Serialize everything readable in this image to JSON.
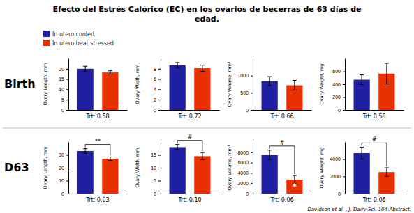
{
  "title": "Efecto del Estrés Calórico (EC) en los ovarios de becerras de 63 días de\nedad.",
  "row_labels": [
    "Birth",
    "D63"
  ],
  "series": [
    {
      "name": "In utero cooled",
      "color": "#1f1fa3"
    },
    {
      "name": "In utero heat stressed",
      "color": "#e83000"
    }
  ],
  "citation": "Davidson et al. ,  J. Dairy Sci. 104:Abstract.",
  "chart_data": [
    {
      "type": "bar",
      "ylabel": "Ovary Length, mm",
      "xlabel": "Trt: 0.58",
      "categories": [
        null,
        null
      ],
      "values": [
        20.0,
        18.2
      ],
      "errors": [
        1.2,
        0.8
      ],
      "colors": [
        "#1f1fa3",
        "#e83000"
      ],
      "ylim": [
        0,
        25
      ],
      "yticks": [
        0,
        5,
        10,
        15,
        20
      ]
    },
    {
      "type": "bar",
      "ylabel": "Ovary Width, mm",
      "xlabel": "Trt: 0.72",
      "categories": [
        null,
        null
      ],
      "values": [
        8.7,
        8.1
      ],
      "errors": [
        0.5,
        0.6
      ],
      "colors": [
        "#1f1fa3",
        "#e83000"
      ],
      "ylim": [
        0,
        10
      ],
      "yticks": [
        0,
        2,
        4,
        6,
        8
      ]
    },
    {
      "type": "bar",
      "ylabel": "Ovary Volume, mm³",
      "xlabel": "Trt: 0.66",
      "categories": [
        null,
        null
      ],
      "values": [
        840,
        720
      ],
      "errors": [
        130,
        140
      ],
      "colors": [
        "#1f1fa3",
        "#e83000"
      ],
      "ylim": [
        0,
        1500
      ],
      "yticks": [
        0,
        500,
        1000
      ]
    },
    {
      "type": "bar",
      "ylabel": "Ovary Weight, mg",
      "xlabel": "Trt: 0.58",
      "categories": [
        null,
        null
      ],
      "values": [
        470,
        565
      ],
      "errors": [
        75,
        160
      ],
      "colors": [
        "#1f1fa3",
        "#e83000"
      ],
      "ylim": [
        0,
        800
      ],
      "yticks": [
        0,
        200,
        400,
        600
      ]
    },
    {
      "type": "bar",
      "ylabel": "Ovary Length, mm",
      "xlabel": "Trt: 0.03",
      "categories": [
        null,
        null
      ],
      "values": [
        33,
        27
      ],
      "errors": [
        1.8,
        1.4
      ],
      "colors": [
        "#1f1fa3",
        "#e83000"
      ],
      "ylim": [
        0,
        40
      ],
      "yticks": [
        0,
        10,
        20,
        30
      ],
      "significance": "**"
    },
    {
      "type": "bar",
      "ylabel": "Ovary Width, mm",
      "xlabel": "Trt: 0.10",
      "categories": [
        null,
        null
      ],
      "values": [
        18,
        14.5
      ],
      "errors": [
        1.0,
        1.4
      ],
      "colors": [
        "#1f1fa3",
        "#e83000"
      ],
      "ylim": [
        0,
        20
      ],
      "yticks": [
        0,
        5,
        10,
        15
      ],
      "significance": "#"
    },
    {
      "type": "bar",
      "ylabel": "Ovary Volume, mm³",
      "xlabel": "Trt: 0.06",
      "categories": [
        null,
        null
      ],
      "values": [
        7500,
        2700
      ],
      "errors": [
        900,
        800
      ],
      "colors": [
        "#1f1fa3",
        "#e83000"
      ],
      "ylim": [
        0,
        10000
      ],
      "yticks": [
        0,
        2000,
        4000,
        6000,
        8000
      ],
      "significance": "#",
      "annotations": [
        {
          "text": "*",
          "bar": 1
        }
      ]
    },
    {
      "type": "bar",
      "ylabel": "Ovary Weight, mg",
      "xlabel": "Trt: 0.06",
      "categories": [
        null,
        null
      ],
      "values": [
        4700,
        2500
      ],
      "errors": [
        700,
        500
      ],
      "colors": [
        "#1f1fa3",
        "#e83000"
      ],
      "ylim": [
        0,
        6000
      ],
      "yticks": [
        0,
        2000,
        4000
      ],
      "significance": "#"
    }
  ]
}
